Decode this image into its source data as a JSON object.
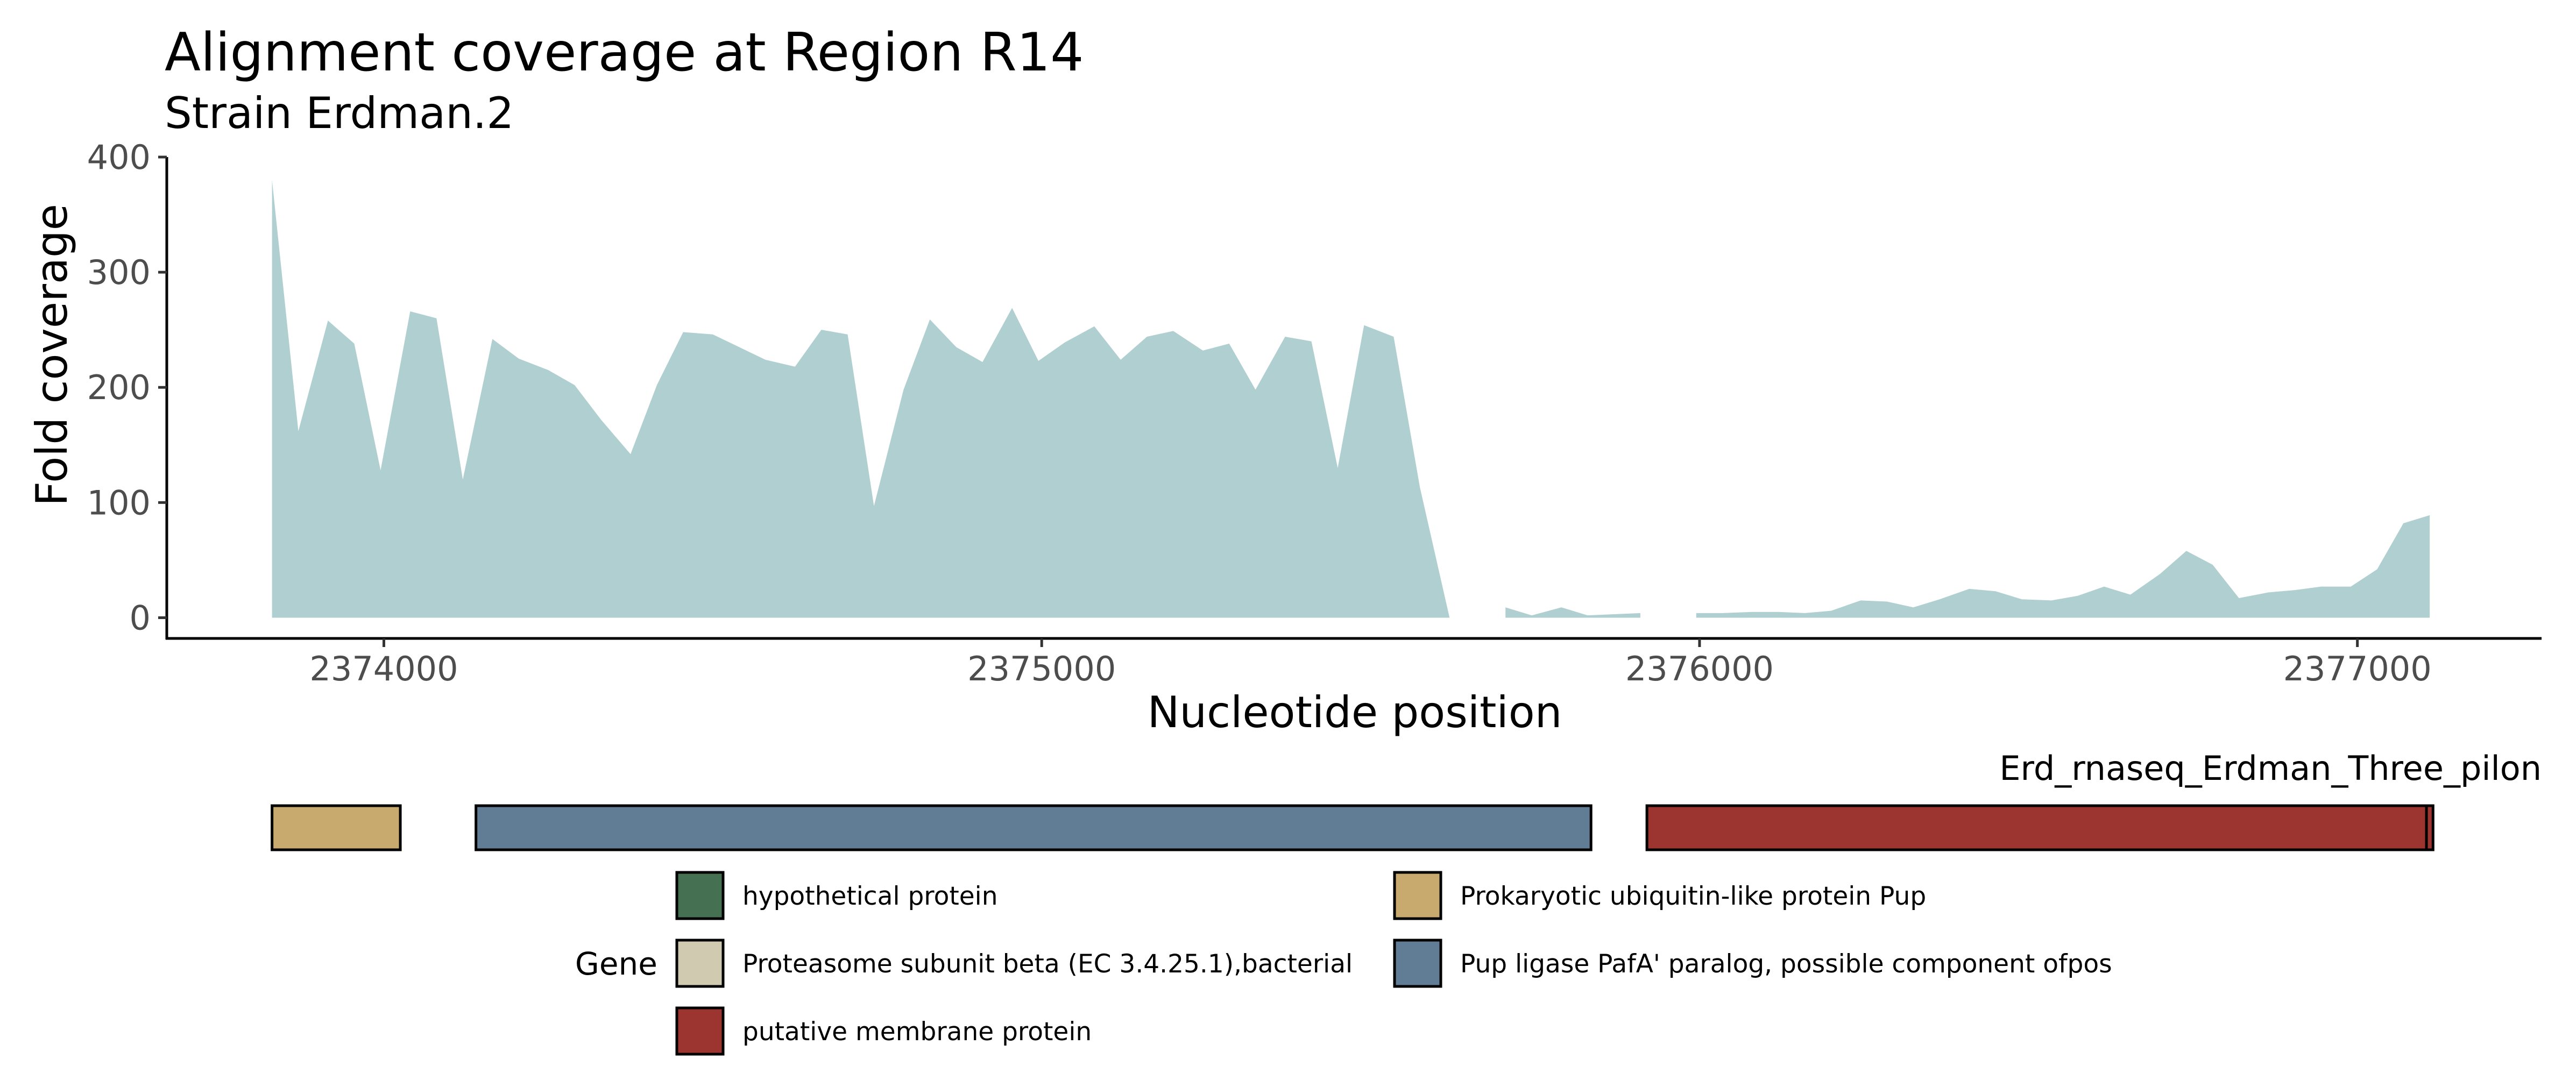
{
  "chart_data": {
    "type": "area",
    "title": "Alignment coverage at Region R14",
    "subtitle": "Strain Erdman.2",
    "xlabel": "Nucleotide position",
    "ylabel": "Fold coverage",
    "xlim": [
      2373670,
      2377280
    ],
    "ylim": [
      -18,
      400
    ],
    "x_ticks": [
      2374000,
      2375000,
      2376000,
      2377000
    ],
    "x_tick_labels": [
      "2374000",
      "2375000",
      "2376000",
      "2377000"
    ],
    "y_ticks": [
      0,
      100,
      200,
      300,
      400
    ],
    "y_tick_labels": [
      "0",
      "100",
      "200",
      "300",
      "400"
    ],
    "fill_color": "#b0cfd1",
    "grid": false,
    "segments": [
      {
        "x": [
          2373830,
          2373870,
          2373915,
          2373955,
          2373995,
          2374040,
          2374080,
          2374120,
          2374165,
          2374205,
          2374250,
          2374290,
          2374330,
          2374375,
          2374415,
          2374455,
          2374500,
          2374540,
          2374580,
          2374625,
          2374665,
          2374705,
          2374745,
          2374790,
          2374830,
          2374870,
          2374910,
          2374955,
          2374995,
          2375035,
          2375080,
          2375120,
          2375160,
          2375200,
          2375245,
          2375285,
          2375325,
          2375370,
          2375410,
          2375450,
          2375490,
          2375535,
          2375575,
          2375620
        ],
        "y": [
          380,
          162,
          258,
          238,
          128,
          266,
          260,
          120,
          242,
          225,
          215,
          202,
          172,
          142,
          202,
          248,
          246,
          235,
          224,
          218,
          250,
          246,
          97,
          198,
          259,
          235,
          222,
          269,
          223,
          239,
          253,
          224,
          244,
          249,
          232,
          238,
          198,
          244,
          240,
          130,
          254,
          244,
          113,
          0
        ]
      },
      {
        "x": [
          2375705,
          2375745,
          2375790,
          2375830,
          2375870,
          2375910
        ],
        "y": [
          9,
          2,
          9,
          2,
          3,
          4
        ]
      },
      {
        "x": [
          2375995,
          2376035,
          2376080,
          2376120,
          2376160,
          2376200,
          2376245,
          2376285,
          2376325,
          2376365,
          2376410,
          2376450,
          2376490,
          2376535,
          2376575,
          2376615,
          2376655,
          2376700,
          2376740,
          2376780,
          2376820,
          2376865,
          2376905,
          2376945,
          2376990,
          2377030,
          2377070,
          2377110
        ],
        "y": [
          4,
          4,
          5,
          5,
          4,
          6,
          15,
          14,
          9,
          16,
          25,
          23,
          16,
          15,
          19,
          27,
          20,
          38,
          58,
          46,
          17,
          22,
          24,
          27,
          27,
          42,
          82,
          89
        ]
      }
    ],
    "track": {
      "label": "Erd_rnaseq_Erdman_Three_pilon",
      "genes": [
        {
          "start": 2373830,
          "end": 2374025,
          "product": "Prokaryotic ubiquitin-like protein Pup",
          "color": "#c8aa6e"
        },
        {
          "start": 2374140,
          "end": 2375835,
          "product": "Pup ligase PafA' paralog, possible component ofpos",
          "color": "#607d95"
        },
        {
          "start": 2375920,
          "end": 2377105,
          "product": "putative membrane protein",
          "color": "#9c3430"
        },
        {
          "start": 2377105,
          "end": 2377115,
          "product": "putative membrane protein",
          "color": "#9c3430"
        }
      ]
    },
    "legend": {
      "title": "Gene",
      "placement": "bottom",
      "items": [
        {
          "label": "hypothetical protein",
          "color": "#467052"
        },
        {
          "label": "Proteasome subunit beta (EC 3.4.25.1),bacterial",
          "color": "#d0cbb0"
        },
        {
          "label": "putative membrane protein",
          "color": "#9c3430"
        },
        {
          "label": "Prokaryotic ubiquitin-like protein Pup",
          "color": "#c8aa6e"
        },
        {
          "label": "Pup ligase PafA' paralog, possible component ofpos",
          "color": "#607d95"
        }
      ]
    }
  }
}
